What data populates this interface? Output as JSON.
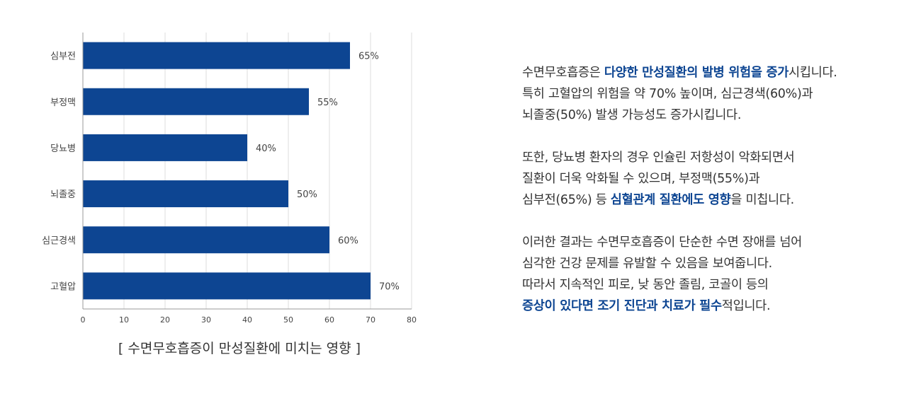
{
  "chart_data": {
    "type": "bar",
    "orientation": "horizontal",
    "categories": [
      "심부전",
      "부정맥",
      "당뇨병",
      "뇌졸중",
      "심근경색",
      "고혈압"
    ],
    "values": [
      65,
      55,
      40,
      50,
      60,
      70
    ],
    "value_labels": [
      "65%",
      "55%",
      "40%",
      "50%",
      "60%",
      "70%"
    ],
    "xlim": [
      0,
      80
    ],
    "xticks": [
      0,
      10,
      20,
      30,
      40,
      50,
      60,
      70,
      80
    ],
    "grid": true,
    "bar_color": "#0d4592",
    "grid_color": "#dddddd",
    "axis_color": "#999999"
  },
  "caption": "[ 수면무호흡증이 만성질환에 미치는 영향 ]",
  "highlight_color": "#0d4592",
  "paragraphs": [
    [
      [
        {
          "t": "수면무호흡증은 ",
          "hl": false
        },
        {
          "t": "다양한 만성질환의 발병 위험을 증가",
          "hl": true
        },
        {
          "t": "시킵니다.",
          "hl": false
        }
      ],
      [
        {
          "t": "특히 고혈압의 위험을 약 70% 높이며, 심근경색(60%)과",
          "hl": false
        }
      ],
      [
        {
          "t": "뇌졸중(50%) 발생 가능성도 증가시킵니다.",
          "hl": false
        }
      ]
    ],
    [
      [
        {
          "t": "또한, 당뇨병 환자의 경우 인슐린 저항성이 악화되면서",
          "hl": false
        }
      ],
      [
        {
          "t": "질환이 더욱 악화될 수 있으며, 부정맥(55%)과",
          "hl": false
        }
      ],
      [
        {
          "t": "심부전(65%) 등 ",
          "hl": false
        },
        {
          "t": "심혈관계 질환에도 영향",
          "hl": true
        },
        {
          "t": "을 미칩니다.",
          "hl": false
        }
      ]
    ],
    [
      [
        {
          "t": "이러한 결과는 수면무호흡증이 단순한 수면 장애를 넘어",
          "hl": false
        }
      ],
      [
        {
          "t": "심각한 건강 문제를 유발할 수 있음을 보여줍니다.",
          "hl": false
        }
      ],
      [
        {
          "t": "따라서 지속적인 피로, 낮 동안 졸림, 코골이 등의",
          "hl": false
        }
      ],
      [
        {
          "t": "증상이 있다면 조기 진단과 치료가 필수",
          "hl": true
        },
        {
          "t": "적입니다.",
          "hl": false
        }
      ]
    ]
  ]
}
